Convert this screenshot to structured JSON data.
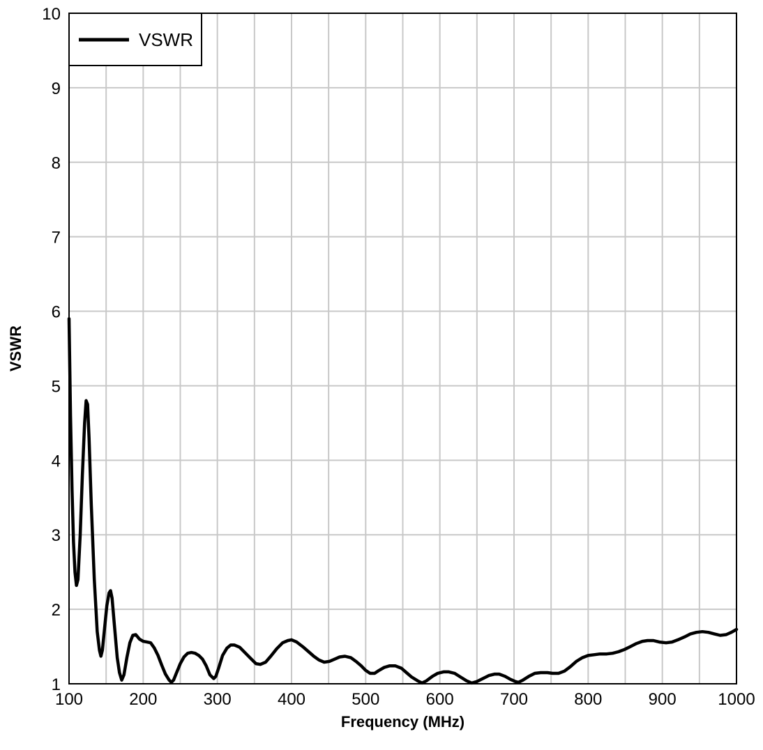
{
  "chart_data": {
    "type": "line",
    "title": "",
    "xlabel": "Frequency (MHz)",
    "ylabel": "VSWR",
    "xlim": [
      100,
      1000
    ],
    "ylim": [
      1,
      10
    ],
    "x_ticks": [
      100,
      200,
      300,
      400,
      500,
      600,
      700,
      800,
      900,
      1000
    ],
    "y_ticks": [
      1,
      2,
      3,
      4,
      5,
      6,
      7,
      8,
      9,
      10
    ],
    "grid": true,
    "legend_position": "top-left",
    "series": [
      {
        "name": "VSWR",
        "color": "#000000",
        "points": [
          [
            100,
            5.9
          ],
          [
            102,
            4.6
          ],
          [
            104,
            3.6
          ],
          [
            106,
            2.9
          ],
          [
            108,
            2.5
          ],
          [
            110,
            2.32
          ],
          [
            112,
            2.4
          ],
          [
            115,
            3.0
          ],
          [
            118,
            3.8
          ],
          [
            121,
            4.5
          ],
          [
            123,
            4.8
          ],
          [
            125,
            4.75
          ],
          [
            127,
            4.3
          ],
          [
            130,
            3.4
          ],
          [
            134,
            2.4
          ],
          [
            138,
            1.7
          ],
          [
            141,
            1.45
          ],
          [
            143,
            1.37
          ],
          [
            145,
            1.45
          ],
          [
            148,
            1.75
          ],
          [
            151,
            2.05
          ],
          [
            154,
            2.22
          ],
          [
            156,
            2.25
          ],
          [
            158,
            2.15
          ],
          [
            161,
            1.8
          ],
          [
            165,
            1.35
          ],
          [
            168,
            1.15
          ],
          [
            171,
            1.05
          ],
          [
            174,
            1.12
          ],
          [
            178,
            1.35
          ],
          [
            182,
            1.55
          ],
          [
            186,
            1.65
          ],
          [
            190,
            1.66
          ],
          [
            195,
            1.6
          ],
          [
            200,
            1.57
          ],
          [
            205,
            1.56
          ],
          [
            210,
            1.55
          ],
          [
            215,
            1.48
          ],
          [
            220,
            1.38
          ],
          [
            225,
            1.25
          ],
          [
            230,
            1.13
          ],
          [
            235,
            1.05
          ],
          [
            238,
            1.02
          ],
          [
            241,
            1.05
          ],
          [
            245,
            1.15
          ],
          [
            250,
            1.27
          ],
          [
            255,
            1.36
          ],
          [
            260,
            1.41
          ],
          [
            265,
            1.42
          ],
          [
            270,
            1.41
          ],
          [
            275,
            1.38
          ],
          [
            280,
            1.33
          ],
          [
            285,
            1.24
          ],
          [
            290,
            1.12
          ],
          [
            295,
            1.07
          ],
          [
            298,
            1.1
          ],
          [
            302,
            1.22
          ],
          [
            307,
            1.38
          ],
          [
            313,
            1.48
          ],
          [
            318,
            1.52
          ],
          [
            323,
            1.52
          ],
          [
            330,
            1.49
          ],
          [
            337,
            1.42
          ],
          [
            345,
            1.34
          ],
          [
            352,
            1.27
          ],
          [
            358,
            1.26
          ],
          [
            365,
            1.29
          ],
          [
            372,
            1.37
          ],
          [
            380,
            1.47
          ],
          [
            388,
            1.55
          ],
          [
            395,
            1.58
          ],
          [
            400,
            1.59
          ],
          [
            407,
            1.56
          ],
          [
            415,
            1.5
          ],
          [
            423,
            1.43
          ],
          [
            430,
            1.37
          ],
          [
            437,
            1.32
          ],
          [
            444,
            1.29
          ],
          [
            451,
            1.3
          ],
          [
            458,
            1.33
          ],
          [
            465,
            1.36
          ],
          [
            472,
            1.37
          ],
          [
            480,
            1.35
          ],
          [
            487,
            1.3
          ],
          [
            494,
            1.24
          ],
          [
            500,
            1.18
          ],
          [
            506,
            1.14
          ],
          [
            512,
            1.14
          ],
          [
            518,
            1.18
          ],
          [
            525,
            1.22
          ],
          [
            532,
            1.24
          ],
          [
            540,
            1.24
          ],
          [
            548,
            1.21
          ],
          [
            555,
            1.15
          ],
          [
            562,
            1.09
          ],
          [
            570,
            1.04
          ],
          [
            576,
            1.01
          ],
          [
            582,
            1.04
          ],
          [
            590,
            1.1
          ],
          [
            597,
            1.14
          ],
          [
            605,
            1.16
          ],
          [
            612,
            1.16
          ],
          [
            620,
            1.14
          ],
          [
            628,
            1.09
          ],
          [
            636,
            1.04
          ],
          [
            643,
            1.01
          ],
          [
            650,
            1.03
          ],
          [
            658,
            1.07
          ],
          [
            666,
            1.11
          ],
          [
            674,
            1.13
          ],
          [
            680,
            1.13
          ],
          [
            688,
            1.1
          ],
          [
            695,
            1.06
          ],
          [
            702,
            1.03
          ],
          [
            706,
            1.02
          ],
          [
            712,
            1.05
          ],
          [
            720,
            1.1
          ],
          [
            728,
            1.14
          ],
          [
            736,
            1.15
          ],
          [
            745,
            1.15
          ],
          [
            752,
            1.14
          ],
          [
            760,
            1.14
          ],
          [
            768,
            1.17
          ],
          [
            776,
            1.23
          ],
          [
            784,
            1.3
          ],
          [
            792,
            1.35
          ],
          [
            800,
            1.38
          ],
          [
            808,
            1.39
          ],
          [
            816,
            1.4
          ],
          [
            825,
            1.4
          ],
          [
            833,
            1.41
          ],
          [
            841,
            1.43
          ],
          [
            849,
            1.46
          ],
          [
            857,
            1.5
          ],
          [
            865,
            1.54
          ],
          [
            873,
            1.57
          ],
          [
            880,
            1.58
          ],
          [
            888,
            1.58
          ],
          [
            896,
            1.56
          ],
          [
            905,
            1.55
          ],
          [
            913,
            1.56
          ],
          [
            921,
            1.59
          ],
          [
            930,
            1.63
          ],
          [
            938,
            1.67
          ],
          [
            946,
            1.69
          ],
          [
            954,
            1.7
          ],
          [
            962,
            1.69
          ],
          [
            970,
            1.67
          ],
          [
            978,
            1.65
          ],
          [
            986,
            1.66
          ],
          [
            993,
            1.69
          ],
          [
            1000,
            1.73
          ]
        ]
      }
    ]
  }
}
